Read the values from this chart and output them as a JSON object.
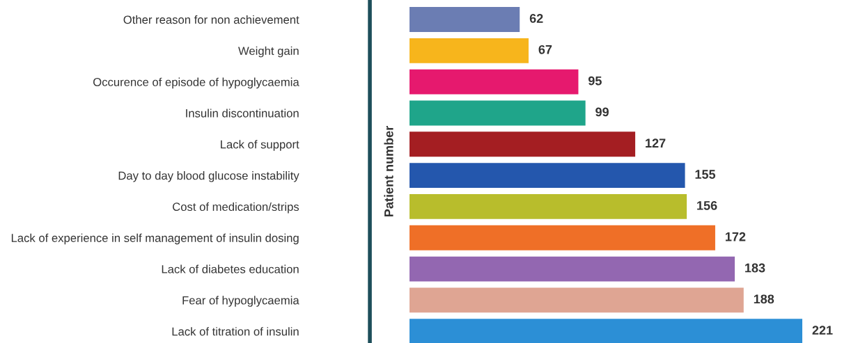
{
  "chart_data": {
    "type": "bar",
    "orientation": "horizontal",
    "ylabel": "Patient number",
    "data_labels": true,
    "grid": false,
    "legend": false,
    "categories": [
      "Other reason for non achievement",
      "Weight gain",
      "Occurence of episode of hypoglycaemia",
      "Insulin discontinuation",
      "Lack of support",
      "Day to day blood glucose instability",
      "Cost of medication/strips",
      "Lack of experience in self management of insulin dosing",
      "Lack of diabetes education",
      "Fear of hypoglycaemia",
      "Lack of titration of insulin"
    ],
    "values": [
      62,
      67,
      95,
      99,
      127,
      155,
      156,
      172,
      183,
      188,
      221
    ],
    "colors": [
      "#6b7db3",
      "#f7b51c",
      "#e6196e",
      "#1fa58a",
      "#a41e22",
      "#2457ad",
      "#b8bd2c",
      "#ef6f27",
      "#9367b1",
      "#dfa593",
      "#2c8fd6"
    ]
  }
}
